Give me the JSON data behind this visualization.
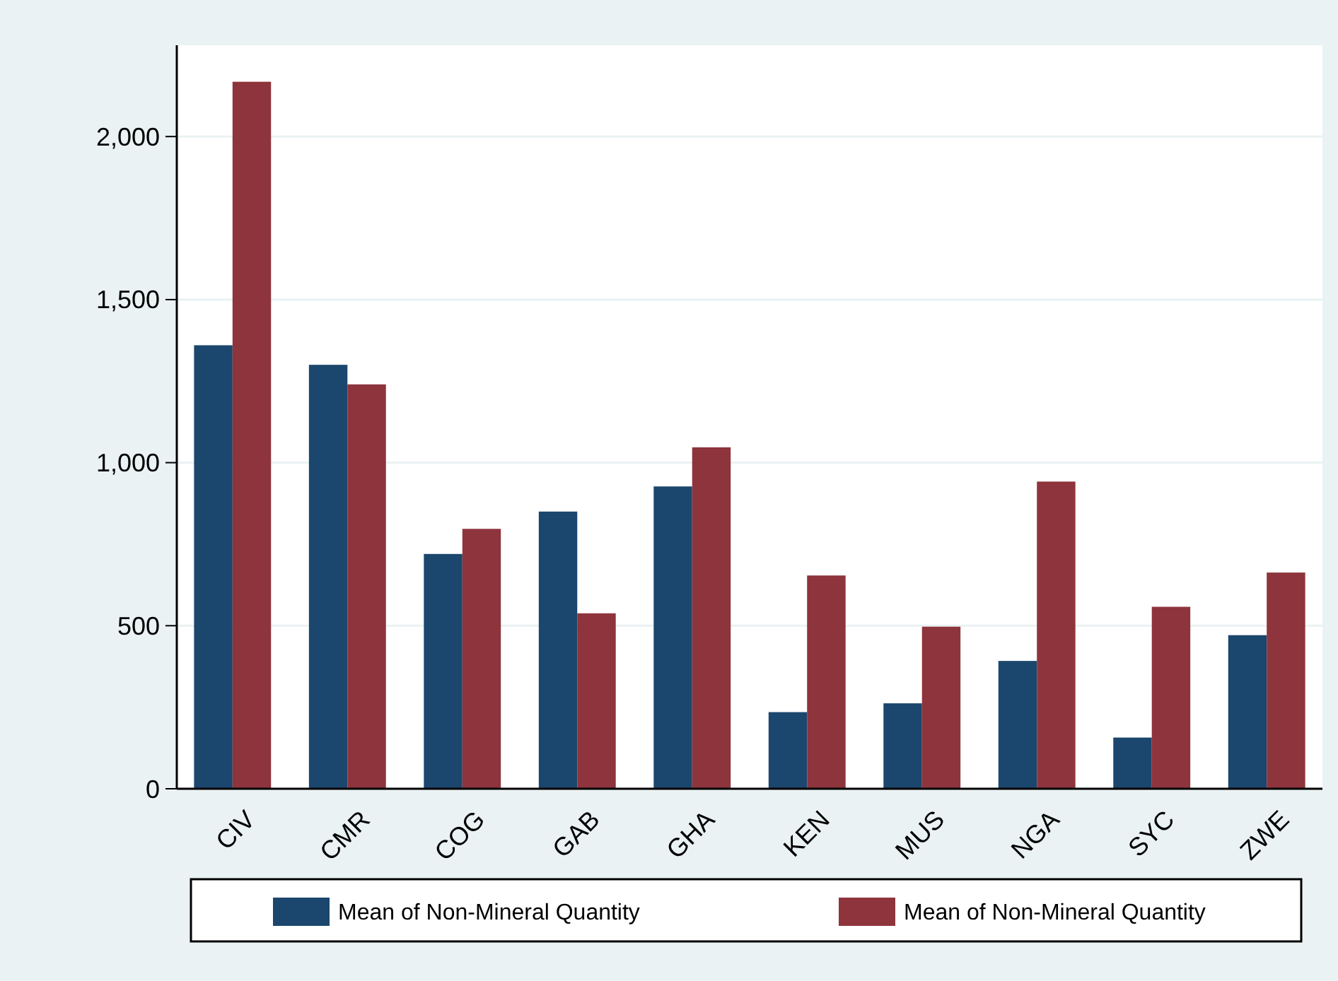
{
  "chart_data": {
    "type": "bar",
    "categories": [
      "CIV",
      "CMR",
      "COG",
      "GAB",
      "GHA",
      "KEN",
      "MUS",
      "NGA",
      "SYC",
      "ZWE"
    ],
    "series": [
      {
        "name": "Mean of Non-Mineral Quantity",
        "color": "#1b466d",
        "values": [
          1360,
          1300,
          720,
          850,
          927,
          235,
          262,
          392,
          157,
          471
        ]
      },
      {
        "name": "Mean of Non-Mineral Quantity",
        "color": "#8e343c",
        "values": [
          2168,
          1240,
          797,
          538,
          1047,
          654,
          497,
          942,
          558,
          663
        ]
      }
    ],
    "ylim": [
      0,
      2280
    ],
    "yticks": [
      {
        "value": 0,
        "label": "0"
      },
      {
        "value": 500,
        "label": "500"
      },
      {
        "value": 1000,
        "label": "1,000"
      },
      {
        "value": 1500,
        "label": "1,500"
      },
      {
        "value": 2000,
        "label": "2,000"
      }
    ],
    "grid": "y",
    "legend": "bottom"
  }
}
